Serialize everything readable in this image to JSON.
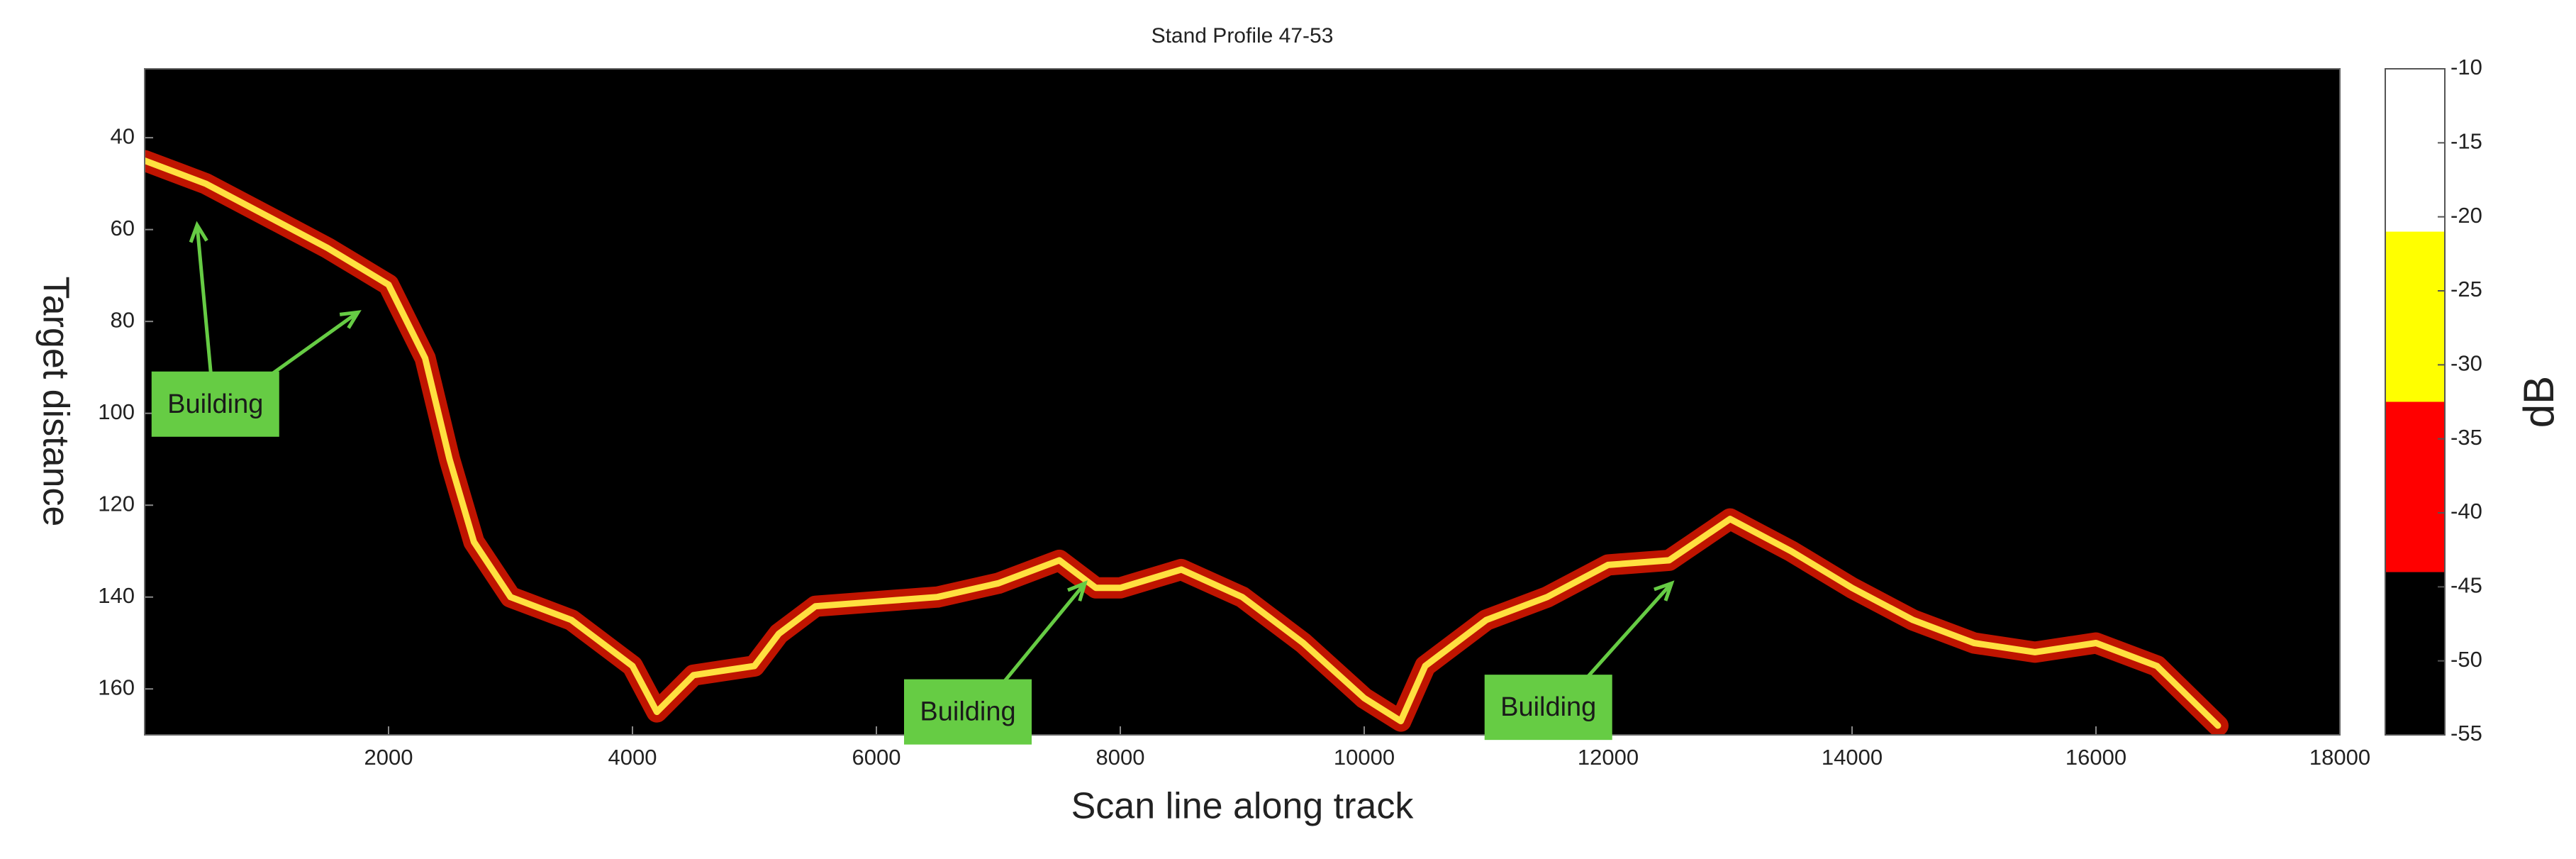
{
  "chart_data": {
    "type": "line",
    "title": "Stand Profile 47-53",
    "xlabel": "Scan line along track",
    "ylabel": "Target distance",
    "xlim": [
      0,
      18000
    ],
    "xticks": [
      2000,
      4000,
      6000,
      8000,
      10000,
      12000,
      14000,
      16000,
      18000
    ],
    "ylim": [
      25,
      170
    ],
    "yticks": [
      40,
      60,
      80,
      100,
      120,
      140,
      160
    ],
    "y_inverted": true,
    "background": "#000000",
    "series": [
      {
        "color": "#ffe040",
        "edge_color": "#e01800",
        "x": [
          0,
          500,
          1000,
          1500,
          2000,
          2300,
          2500,
          2700,
          3000,
          3500,
          4000,
          4200,
          4500,
          5000,
          5200,
          5500,
          6000,
          6500,
          7000,
          7500,
          7800,
          8000,
          8500,
          9000,
          9500,
          10000,
          10300,
          10500,
          11000,
          11500,
          12000,
          12500,
          13000,
          13500,
          14000,
          14500,
          15000,
          15500,
          16000,
          16500,
          17000
        ],
        "values": [
          45,
          50,
          57,
          64,
          72,
          88,
          110,
          128,
          140,
          145,
          155,
          165,
          157,
          155,
          148,
          142,
          141,
          140,
          137,
          132,
          138,
          138,
          134,
          140,
          150,
          162,
          167,
          155,
          145,
          140,
          133,
          132,
          123,
          130,
          138,
          145,
          150,
          152,
          150,
          155,
          168
        ]
      }
    ],
    "annotations": [
      {
        "text": "Building",
        "x": 580,
        "y": 98,
        "color": "#66cc44",
        "targets": [
          [
            430,
            59
          ],
          [
            1750,
            78
          ]
        ]
      },
      {
        "text": "Building",
        "x": 6750,
        "y": 165,
        "color": "#66cc44",
        "targets": [
          [
            7710,
            137
          ]
        ]
      },
      {
        "text": "Building",
        "x": 11510,
        "y": 164,
        "color": "#66cc44",
        "targets": [
          [
            12520,
            137
          ]
        ]
      }
    ],
    "colorbar": {
      "label": "dB",
      "lim": [
        -55,
        -10
      ],
      "ticks": [
        -10,
        -15,
        -20,
        -25,
        -30,
        -35,
        -40,
        -45,
        -50,
        -55
      ],
      "bands": [
        {
          "from": -55,
          "to": -44,
          "color": "#000000"
        },
        {
          "from": -44,
          "to": -32.5,
          "color": "#ff0000"
        },
        {
          "from": -32.5,
          "to": -21,
          "color": "#ffff00"
        },
        {
          "from": -21,
          "to": -10,
          "color": "#ffffff"
        }
      ]
    }
  }
}
